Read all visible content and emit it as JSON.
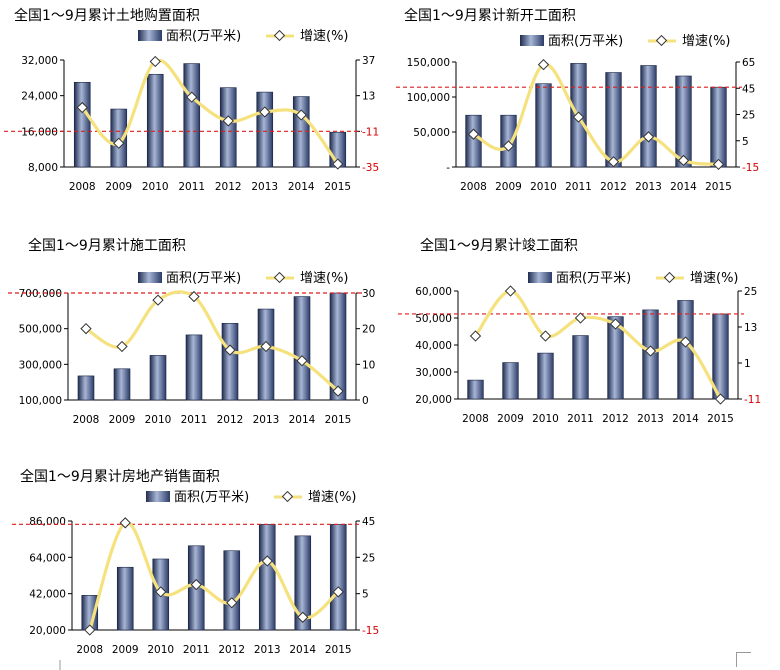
{
  "legend": {
    "area_label": "面积(万平米)",
    "growth_label": "增速(%)"
  },
  "charts": [
    {
      "id": "land-purchase",
      "title": "全国1～9月累计土地购置面积",
      "chart_data": {
        "type": "bar",
        "categories": [
          "2008",
          "2009",
          "2010",
          "2011",
          "2012",
          "2013",
          "2014",
          "2015"
        ],
        "series": [
          {
            "name": "面积(万平米)",
            "axis": "left",
            "type": "bar",
            "values": [
              27000,
              21000,
              28800,
              31200,
              25800,
              24800,
              23800,
              15800
            ]
          },
          {
            "name": "增速(%)",
            "axis": "right",
            "type": "line",
            "values": [
              5,
              -19,
              36,
              12,
              -4,
              2,
              0,
              -33
            ]
          }
        ],
        "ylim_left": [
          8000,
          32000
        ],
        "yticks_left": [
          "8,000",
          "16,000",
          "24,000",
          "32,000"
        ],
        "ylim_right": [
          -35,
          37
        ],
        "yticks_right": [
          "-35",
          "-11",
          "13",
          "37"
        ],
        "ref_line_left": 16000
      }
    },
    {
      "id": "new-starts",
      "title": "全国1～9月累计新开工面积",
      "chart_data": {
        "type": "bar",
        "categories": [
          "2008",
          "2009",
          "2010",
          "2011",
          "2012",
          "2013",
          "2014",
          "2015"
        ],
        "series": [
          {
            "name": "面积(万平米)",
            "axis": "left",
            "type": "bar",
            "values": [
              74000,
              74000,
              119000,
              148000,
              135000,
              145000,
              130000,
              114000
            ]
          },
          {
            "name": "增速(%)",
            "axis": "right",
            "type": "line",
            "values": [
              10,
              1,
              63,
              23,
              -11,
              8,
              -10,
              -13
            ]
          }
        ],
        "ylim_left": [
          0,
          150000
        ],
        "yticks_left": [
          "-",
          "50,000",
          "100,000",
          "150,000"
        ],
        "ylim_right": [
          -15,
          65
        ],
        "yticks_right": [
          "-15",
          "5",
          "25",
          "45",
          "65"
        ],
        "ref_line_left": 114000
      }
    },
    {
      "id": "under-construction",
      "title": "全国1～9月累计施工面积",
      "chart_data": {
        "type": "bar",
        "categories": [
          "2008",
          "2009",
          "2010",
          "2011",
          "2012",
          "2013",
          "2014",
          "2015"
        ],
        "series": [
          {
            "name": "面积(万平米)",
            "axis": "left",
            "type": "bar",
            "values": [
              235000,
              275000,
              350000,
              465000,
              530000,
              610000,
              680000,
              700000
            ]
          },
          {
            "name": "增速(%)",
            "axis": "right",
            "type": "line",
            "values": [
              20,
              15,
              28,
              29,
              14,
              15,
              11,
              2.5
            ]
          }
        ],
        "ylim_left": [
          100000,
          700000
        ],
        "yticks_left": [
          "100,000",
          "300,000",
          "500,000",
          "700,000"
        ],
        "ylim_right": [
          0,
          30
        ],
        "yticks_right": [
          "0",
          "10",
          "20",
          "30"
        ],
        "ref_line_left": 700000
      }
    },
    {
      "id": "completed",
      "title": "全国1～9月累计竣工面积",
      "chart_data": {
        "type": "bar",
        "categories": [
          "2008",
          "2009",
          "2010",
          "2011",
          "2012",
          "2013",
          "2014",
          "2015"
        ],
        "series": [
          {
            "name": "面积(万平米)",
            "axis": "left",
            "type": "bar",
            "values": [
              27000,
              33500,
              37000,
              43500,
              50500,
              53000,
              56500,
              51500
            ]
          },
          {
            "name": "增速(%)",
            "axis": "right",
            "type": "line",
            "values": [
              10,
              25,
              10,
              16,
              14,
              5,
              8,
              -11
            ]
          }
        ],
        "ylim_left": [
          20000,
          60000
        ],
        "yticks_left": [
          "20,000",
          "30,000",
          "40,000",
          "50,000",
          "60,000"
        ],
        "ylim_right": [
          -11,
          25
        ],
        "yticks_right": [
          "-11",
          "1",
          "13",
          "25"
        ],
        "ref_line_left": 51500
      }
    },
    {
      "id": "sales",
      "title": "全国1～9月累计房地产销售面积",
      "chart_data": {
        "type": "bar",
        "categories": [
          "2008",
          "2009",
          "2010",
          "2011",
          "2012",
          "2013",
          "2014",
          "2015"
        ],
        "series": [
          {
            "name": "面积(万平米)",
            "axis": "left",
            "type": "bar",
            "values": [
              41000,
              58000,
              63000,
              71000,
              68000,
              84000,
              77000,
              84000
            ]
          },
          {
            "name": "增速(%)",
            "axis": "right",
            "type": "line",
            "values": [
              -15,
              44,
              6,
              10,
              0,
              23,
              -8,
              6
            ]
          }
        ],
        "ylim_left": [
          20000,
          86000
        ],
        "yticks_left": [
          "20,000",
          "42,000",
          "64,000",
          "86,000"
        ],
        "ylim_right": [
          -15,
          45
        ],
        "yticks_right": [
          "-15",
          "5",
          "25",
          "45"
        ],
        "ref_line_left": 84000
      }
    }
  ]
}
